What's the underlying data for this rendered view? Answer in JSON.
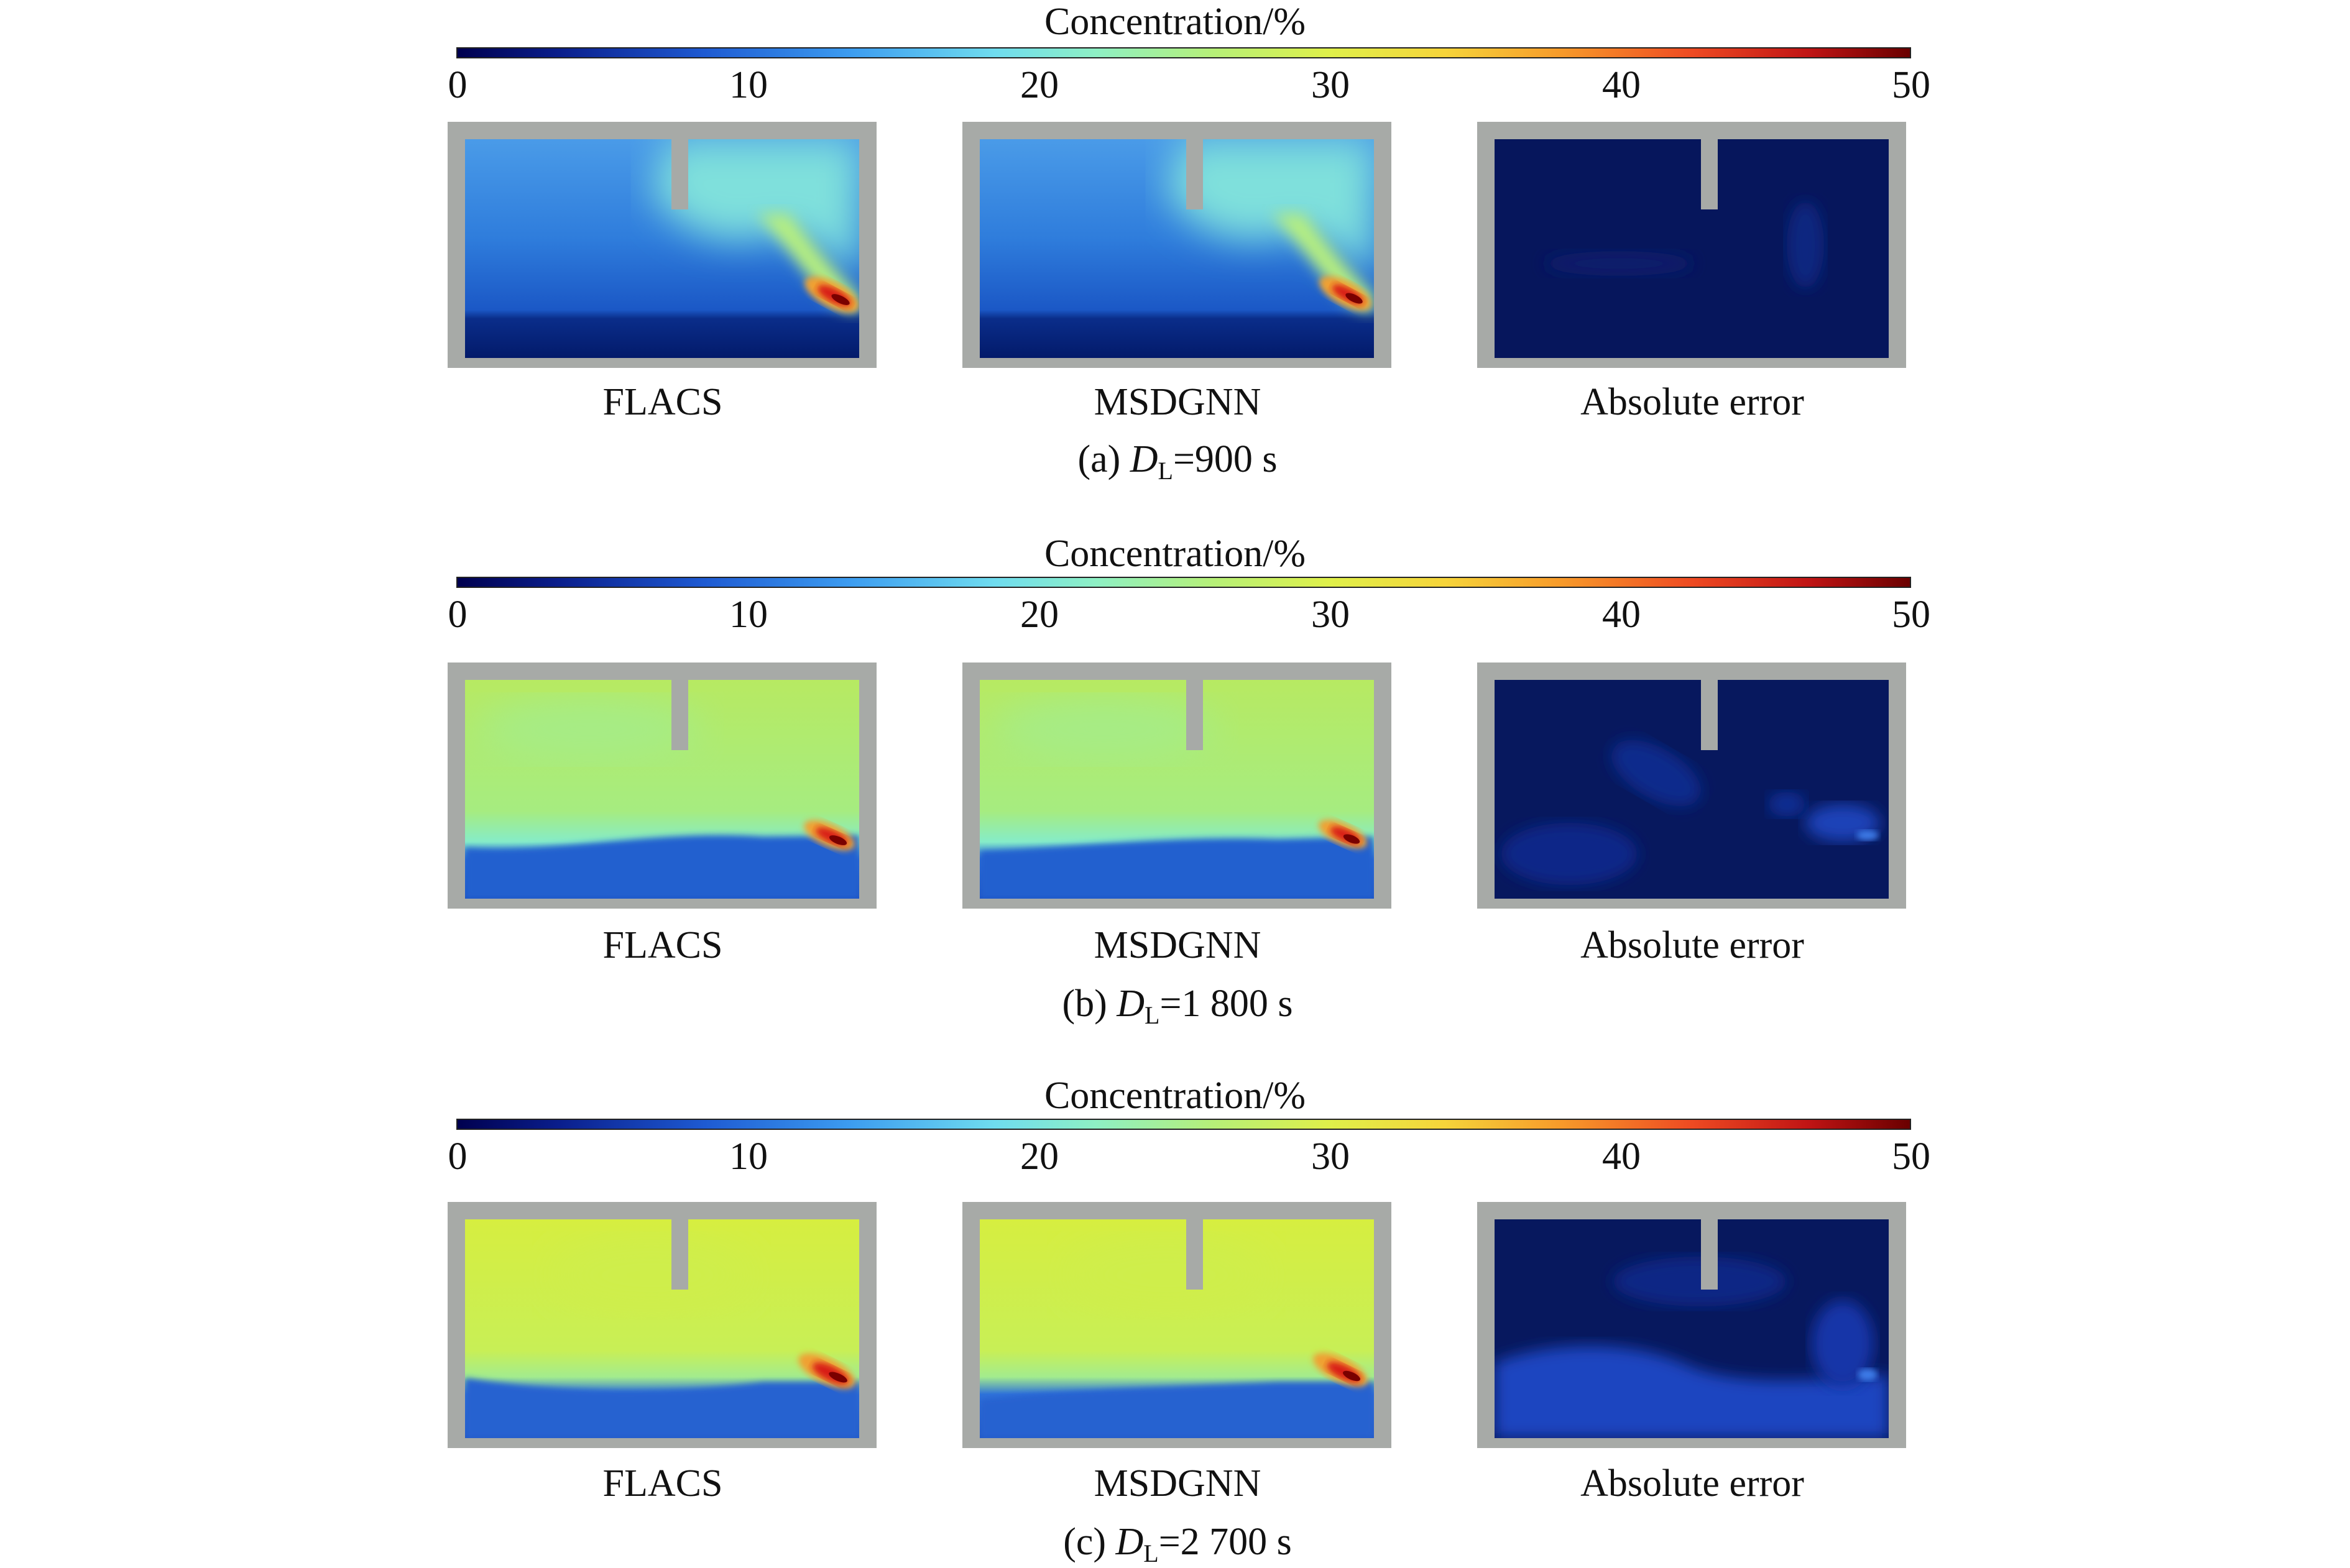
{
  "colorbar": {
    "title": "Concentration/%",
    "ticks": [
      "0",
      "10",
      "20",
      "30",
      "40",
      "50"
    ],
    "range": [
      0,
      50
    ],
    "colormap": "jet"
  },
  "rows": [
    {
      "id": "a",
      "caption_prefix": "(a) ",
      "caption_var": "D",
      "caption_sub": "L",
      "caption_suffix": "=900 s",
      "panels": [
        "FLACS",
        "MSDGNN",
        "Absolute error"
      ]
    },
    {
      "id": "b",
      "caption_prefix": "(b) ",
      "caption_var": "D",
      "caption_sub": "L",
      "caption_suffix": "=1 800 s",
      "panels": [
        "FLACS",
        "MSDGNN",
        "Absolute error"
      ]
    },
    {
      "id": "c",
      "caption_prefix": "(c) ",
      "caption_var": "D",
      "caption_sub": "L",
      "caption_suffix": "=2 700 s",
      "panels": [
        "FLACS",
        "MSDGNN",
        "Absolute error"
      ]
    }
  ],
  "colors": {
    "frame": "#a7aaa7",
    "error_background": "#06145a"
  }
}
